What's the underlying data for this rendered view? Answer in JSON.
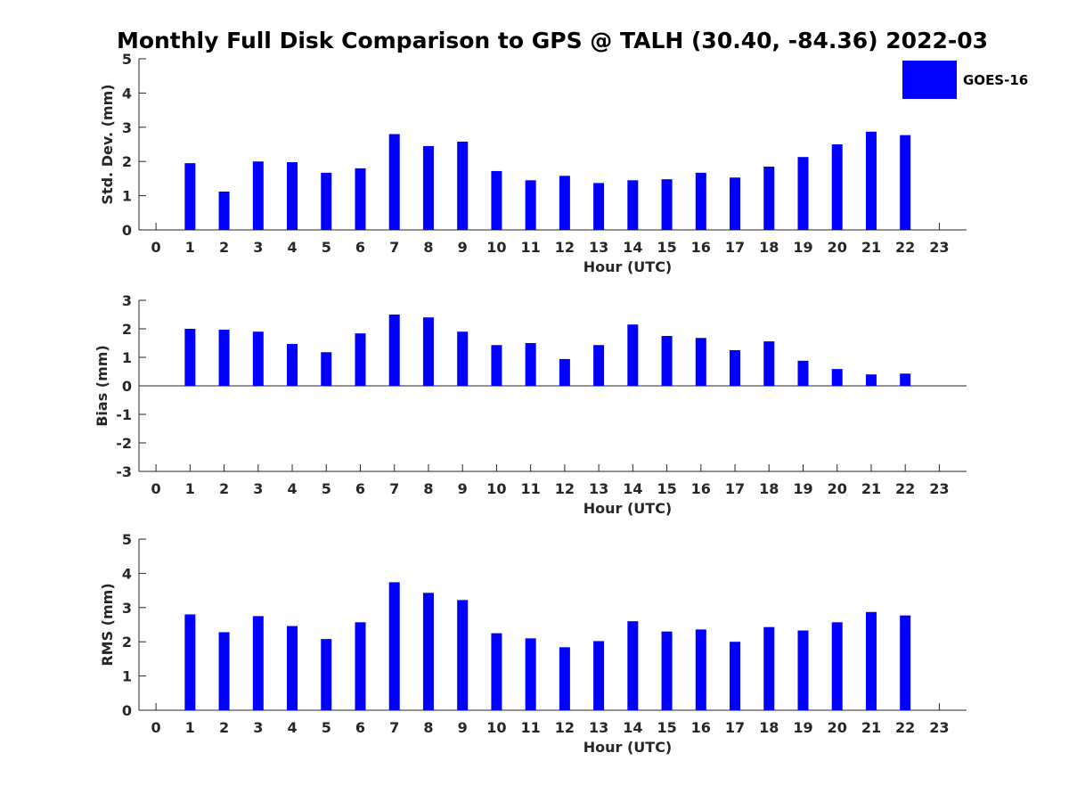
{
  "title": "Monthly Full Disk Comparison to GPS @ TALH (30.40, -84.36) 2022-03",
  "legend": {
    "label": "GOES-16",
    "placement": "top-right",
    "color": "#0000ff"
  },
  "chart_data": [
    {
      "type": "bar",
      "xlabel": "Hour (UTC)",
      "ylabel": "Std. Dev. (mm)",
      "xlim": [
        -0.5,
        23.8
      ],
      "ylim": [
        0,
        5
      ],
      "yticks": [
        0,
        1,
        2,
        3,
        4,
        5
      ],
      "categories": [
        "0",
        "1",
        "2",
        "3",
        "4",
        "5",
        "6",
        "7",
        "8",
        "9",
        "10",
        "11",
        "12",
        "13",
        "14",
        "15",
        "16",
        "17",
        "18",
        "19",
        "20",
        "21",
        "22",
        "23"
      ],
      "series": [
        {
          "name": "GOES-16",
          "color": "#0000ff",
          "values": [
            null,
            1.95,
            1.12,
            2.0,
            1.98,
            1.67,
            1.8,
            2.8,
            2.45,
            2.58,
            1.72,
            1.45,
            1.58,
            1.37,
            1.45,
            1.48,
            1.67,
            1.53,
            1.85,
            2.13,
            2.5,
            2.87,
            2.77,
            null
          ]
        }
      ]
    },
    {
      "type": "bar",
      "xlabel": "Hour (UTC)",
      "ylabel": "Bias (mm)",
      "xlim": [
        -0.5,
        23.8
      ],
      "ylim": [
        -3,
        3
      ],
      "yticks": [
        -3,
        -2,
        -1,
        0,
        1,
        2,
        3
      ],
      "zero_line": true,
      "categories": [
        "0",
        "1",
        "2",
        "3",
        "4",
        "5",
        "6",
        "7",
        "8",
        "9",
        "10",
        "11",
        "12",
        "13",
        "14",
        "15",
        "16",
        "17",
        "18",
        "19",
        "20",
        "21",
        "22",
        "23"
      ],
      "series": [
        {
          "name": "GOES-16",
          "color": "#0000ff",
          "values": [
            null,
            2.0,
            1.97,
            1.9,
            1.47,
            1.18,
            1.84,
            2.5,
            2.4,
            1.9,
            1.43,
            1.5,
            0.94,
            1.43,
            2.15,
            1.75,
            1.68,
            1.25,
            1.56,
            0.88,
            0.59,
            0.4,
            0.43,
            null
          ]
        }
      ]
    },
    {
      "type": "bar",
      "xlabel": "Hour (UTC)",
      "ylabel": "RMS (mm)",
      "xlim": [
        -0.5,
        23.8
      ],
      "ylim": [
        0,
        5
      ],
      "yticks": [
        0,
        1,
        2,
        3,
        4,
        5
      ],
      "categories": [
        "0",
        "1",
        "2",
        "3",
        "4",
        "5",
        "6",
        "7",
        "8",
        "9",
        "10",
        "11",
        "12",
        "13",
        "14",
        "15",
        "16",
        "17",
        "18",
        "19",
        "20",
        "21",
        "22",
        "23"
      ],
      "series": [
        {
          "name": "GOES-16",
          "color": "#0000ff",
          "values": [
            null,
            2.8,
            2.28,
            2.75,
            2.46,
            2.08,
            2.57,
            3.74,
            3.43,
            3.22,
            2.25,
            2.1,
            1.84,
            2.02,
            2.6,
            2.3,
            2.36,
            2.0,
            2.43,
            2.33,
            2.57,
            2.87,
            2.77,
            null
          ]
        }
      ]
    }
  ]
}
